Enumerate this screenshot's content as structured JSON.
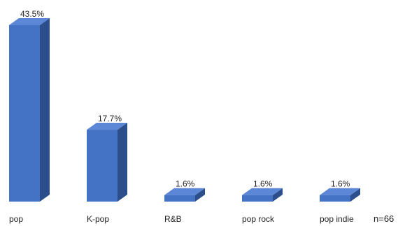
{
  "chart_data": {
    "type": "bar",
    "style": "3d-column",
    "categories": [
      "pop",
      "K-pop",
      "R&B",
      "pop rock",
      "pop indie"
    ],
    "values": [
      43.5,
      17.7,
      1.6,
      1.6,
      1.6
    ],
    "data_labels": [
      "43.5%",
      "17.7%",
      "1.6%",
      "1.6%",
      "1.6%"
    ],
    "unit": "%",
    "ylim": [
      0,
      43.5
    ],
    "grid": false,
    "legend": "none",
    "annotation": "n=66",
    "colors": {
      "front": "#4472C4",
      "side": "#2C4E8A",
      "top": "#5B87D6"
    }
  }
}
